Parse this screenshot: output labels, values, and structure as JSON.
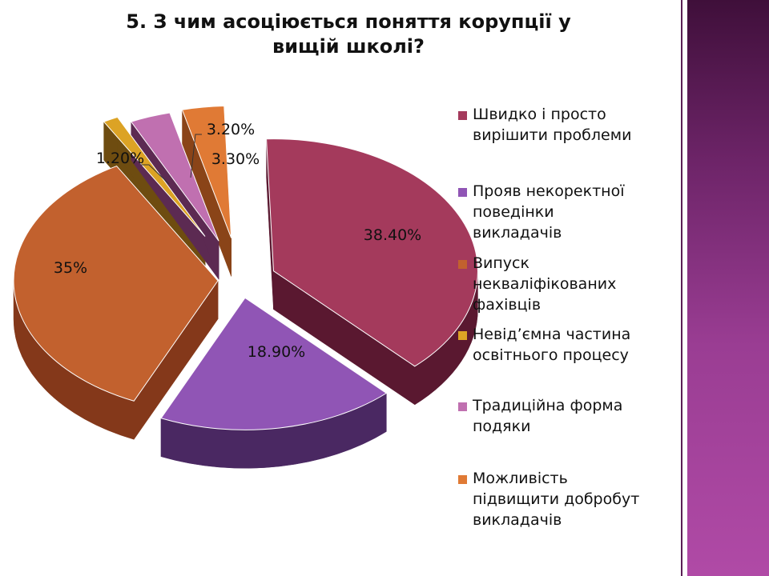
{
  "slide": {
    "title_line1": "5. З чим асоціюється поняття корупції у",
    "title_line2": "вищій школі?"
  },
  "chart_data": {
    "type": "pie",
    "title": "5. З чим асоціюється поняття корупції у вищій школі?",
    "legend_position": "right",
    "slices": [
      {
        "label": "Швидко і просто вирішити проблеми",
        "lines": [
          "Швидко і просто",
          "вирішити проблеми"
        ],
        "value": 38.4,
        "value_label": "38.40%",
        "color": "#a43a5c",
        "side_color": "#5a1830"
      },
      {
        "label": "Прояв некоректної поведінки викладачів",
        "lines": [
          "Прояв некоректної",
          "поведінки",
          "викладачів"
        ],
        "value": 18.9,
        "value_label": "18.90%",
        "color": "#9055b5",
        "side_color": "#4a2862"
      },
      {
        "label": "Випуск некваліфікованих фахівців",
        "lines": [
          "Випуск",
          "некваліфікованих",
          "фахівців"
        ],
        "value": 35,
        "value_label": "35%",
        "color": "#c2612e",
        "side_color": "#84381a"
      },
      {
        "label": "Невід’ємна частина освітнього процесу",
        "lines": [
          "Невід’ємна частина",
          "освітнього процесу"
        ],
        "value": 1.2,
        "value_label": "1.20%",
        "color": "#dca325",
        "side_color": "#6e4c10"
      },
      {
        "label": "Традиційна форма подяки",
        "lines": [
          "Традиційна форма",
          "подяки"
        ],
        "value": 3.2,
        "value_label": "3.20%",
        "color": "#c070b0",
        "side_color": "#5c2a52"
      },
      {
        "label": "Можливість підвищити добробут викладачів",
        "lines": [
          "Можливість",
          "підвищити добробут",
          "викладачів"
        ],
        "value": 3.3,
        "value_label": "3.30%",
        "color": "#e07a35",
        "side_color": "#8a4418"
      }
    ]
  }
}
